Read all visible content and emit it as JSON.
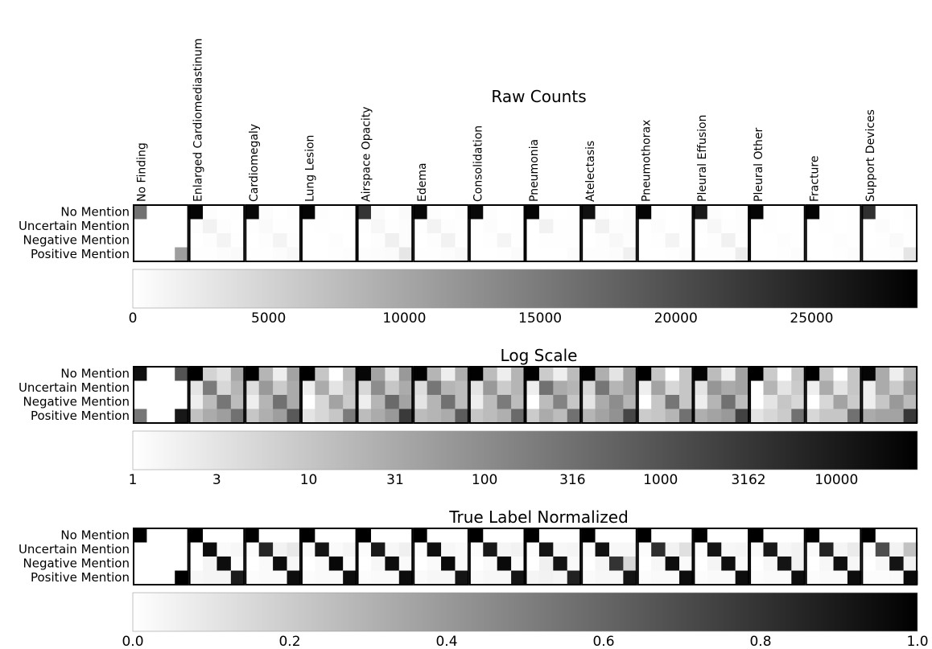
{
  "row_labels": [
    "No Mention",
    "Uncertain Mention",
    "Negative Mention",
    "Positive Mention"
  ],
  "categories": [
    "No Finding",
    "Enlarged Cardiomediastinum",
    "Cardiomegaly",
    "Lung Lesion",
    "Airspace Opacity",
    "Edema",
    "Consolidation",
    "Pneumonia",
    "Atelectasis",
    "Pneumothorax",
    "Pleural Effusion",
    "Pleural Other",
    "Fracture",
    "Support Devices"
  ],
  "chart_data": [
    {
      "type": "heatmap",
      "title": "Raw Counts",
      "colorbar": {
        "min": 0,
        "max": 28900,
        "scale": "linear",
        "tick_values": [
          0,
          5000,
          10000,
          15000,
          20000,
          25000
        ],
        "tick_labels": [
          "0",
          "5000",
          "10000",
          "15000",
          "20000",
          "25000"
        ]
      },
      "matrices": [
        [
          [
            16000,
            0,
            0,
            0
          ],
          [
            0,
            0,
            0,
            0
          ],
          [
            0,
            0,
            0,
            0
          ],
          [
            0,
            0,
            0,
            11000
          ]
        ],
        [
          [
            28500,
            200,
            0,
            100
          ],
          [
            200,
            1500,
            200,
            50
          ],
          [
            0,
            200,
            1200,
            100
          ],
          [
            100,
            100,
            300,
            600
          ]
        ],
        [
          [
            28000,
            300,
            0,
            200
          ],
          [
            100,
            600,
            100,
            100
          ],
          [
            0,
            200,
            1200,
            200
          ],
          [
            100,
            100,
            300,
            800
          ]
        ],
        [
          [
            28500,
            200,
            0,
            100
          ],
          [
            0,
            150,
            0,
            50
          ],
          [
            0,
            0,
            200,
            50
          ],
          [
            50,
            50,
            100,
            200
          ]
        ],
        [
          [
            23000,
            500,
            0,
            600
          ],
          [
            100,
            900,
            100,
            300
          ],
          [
            0,
            200,
            1700,
            300
          ],
          [
            200,
            300,
            500,
            2800
          ]
        ],
        [
          [
            28000,
            200,
            0,
            200
          ],
          [
            100,
            1400,
            200,
            100
          ],
          [
            0,
            200,
            1500,
            100
          ],
          [
            100,
            100,
            300,
            700
          ]
        ],
        [
          [
            28000,
            200,
            0,
            150
          ],
          [
            0,
            300,
            0,
            100
          ],
          [
            0,
            100,
            1100,
            100
          ],
          [
            50,
            50,
            100,
            400
          ]
        ],
        [
          [
            28500,
            100,
            0,
            100
          ],
          [
            0,
            1500,
            100,
            100
          ],
          [
            0,
            100,
            100,
            100
          ],
          [
            50,
            50,
            50,
            300
          ]
        ],
        [
          [
            27000,
            200,
            0,
            300
          ],
          [
            100,
            1500,
            200,
            300
          ],
          [
            0,
            200,
            800,
            200
          ],
          [
            200,
            200,
            300,
            1700
          ]
        ],
        [
          [
            28500,
            100,
            0,
            100
          ],
          [
            0,
            300,
            0,
            100
          ],
          [
            0,
            100,
            1200,
            100
          ],
          [
            0,
            0,
            100,
            300
          ]
        ],
        [
          [
            26000,
            200,
            0,
            200
          ],
          [
            100,
            900,
            100,
            200
          ],
          [
            0,
            200,
            1600,
            100
          ],
          [
            200,
            200,
            200,
            2000
          ]
        ],
        [
          [
            28500,
            100,
            0,
            100
          ],
          [
            0,
            100,
            0,
            100
          ],
          [
            0,
            0,
            200,
            100
          ],
          [
            0,
            0,
            100,
            300
          ]
        ],
        [
          [
            28500,
            100,
            0,
            100
          ],
          [
            0,
            100,
            0,
            100
          ],
          [
            0,
            0,
            200,
            100
          ],
          [
            0,
            0,
            100,
            300
          ]
        ],
        [
          [
            23500,
            100,
            0,
            200
          ],
          [
            0,
            300,
            0,
            100
          ],
          [
            0,
            100,
            600,
            100
          ],
          [
            100,
            100,
            200,
            3000
          ]
        ]
      ]
    },
    {
      "type": "heatmap",
      "title": "Log Scale",
      "colorbar": {
        "min": 1,
        "max": 28900,
        "scale": "log",
        "tick_values": [
          1,
          3,
          10,
          31,
          100,
          316,
          1000,
          3162,
          10000
        ],
        "tick_labels": [
          "1",
          "3",
          "10",
          "31",
          "100",
          "316",
          "1000",
          "3162",
          "10000"
        ]
      },
      "matrices": [
        [
          [
            16000,
            0,
            0,
            1000
          ],
          [
            0,
            0,
            0,
            0
          ],
          [
            0,
            0,
            0,
            0
          ],
          [
            250,
            0,
            0,
            11000
          ]
        ],
        [
          [
            28500,
            6,
            3,
            35
          ],
          [
            3,
            200,
            5,
            20
          ],
          [
            2,
            15,
            250,
            15
          ],
          [
            12,
            30,
            50,
            300
          ]
        ],
        [
          [
            28000,
            20,
            2,
            40
          ],
          [
            4,
            60,
            8,
            30
          ],
          [
            2,
            20,
            300,
            30
          ],
          [
            10,
            25,
            50,
            800
          ]
        ],
        [
          [
            28500,
            10,
            1,
            15
          ],
          [
            2,
            30,
            3,
            10
          ],
          [
            1,
            5,
            40,
            8
          ],
          [
            3,
            5,
            10,
            200
          ]
        ],
        [
          [
            23000,
            40,
            3,
            60
          ],
          [
            5,
            100,
            10,
            30
          ],
          [
            2,
            20,
            400,
            40
          ],
          [
            15,
            30,
            60,
            2800
          ]
        ],
        [
          [
            28000,
            20,
            2,
            25
          ],
          [
            4,
            250,
            20,
            15
          ],
          [
            3,
            20,
            300,
            15
          ],
          [
            15,
            20,
            30,
            700
          ]
        ],
        [
          [
            28000,
            15,
            2,
            20
          ],
          [
            3,
            60,
            8,
            20
          ],
          [
            2,
            15,
            200,
            15
          ],
          [
            10,
            15,
            25,
            400
          ]
        ],
        [
          [
            28500,
            8,
            2,
            15
          ],
          [
            2,
            300,
            30,
            20
          ],
          [
            1,
            15,
            150,
            10
          ],
          [
            8,
            30,
            15,
            300
          ]
        ],
        [
          [
            27000,
            25,
            3,
            40
          ],
          [
            5,
            250,
            20,
            40
          ],
          [
            3,
            30,
            100,
            20
          ],
          [
            20,
            40,
            80,
            1700
          ]
        ],
        [
          [
            28500,
            10,
            1,
            10
          ],
          [
            2,
            40,
            5,
            10
          ],
          [
            1,
            10,
            250,
            10
          ],
          [
            8,
            10,
            20,
            300
          ]
        ],
        [
          [
            26000,
            15,
            2,
            40
          ],
          [
            3,
            70,
            30,
            40
          ],
          [
            2,
            20,
            300,
            15
          ],
          [
            25,
            40,
            60,
            2000
          ]
        ],
        [
          [
            28500,
            8,
            1,
            10
          ],
          [
            1,
            20,
            3,
            8
          ],
          [
            1,
            3,
            10,
            5
          ],
          [
            3,
            5,
            8,
            300
          ]
        ],
        [
          [
            28500,
            10,
            1,
            10
          ],
          [
            2,
            30,
            3,
            10
          ],
          [
            1,
            5,
            40,
            8
          ],
          [
            5,
            10,
            10,
            300
          ]
        ],
        [
          [
            23500,
            30,
            2,
            20
          ],
          [
            2,
            30,
            8,
            50
          ],
          [
            2,
            10,
            60,
            15
          ],
          [
            30,
            40,
            40,
            3000
          ]
        ]
      ]
    },
    {
      "type": "heatmap",
      "title": "True Label Normalized",
      "colorbar": {
        "min": 0,
        "max": 1,
        "scale": "linear",
        "tick_values": [
          0,
          0.2,
          0.4,
          0.6,
          0.8,
          1.0
        ],
        "tick_labels": [
          "0.0",
          "0.2",
          "0.4",
          "0.6",
          "0.8",
          "1.0"
        ]
      },
      "matrices": [
        [
          [
            1,
            0,
            0,
            0
          ],
          [
            0,
            0,
            0,
            0
          ],
          [
            0,
            0,
            0,
            0
          ],
          [
            0,
            0,
            0,
            1
          ]
        ],
        [
          [
            1,
            0,
            0,
            0
          ],
          [
            0,
            0.95,
            0.02,
            0.03
          ],
          [
            0,
            0.04,
            0.95,
            0.01
          ],
          [
            0.03,
            0.04,
            0.04,
            0.89
          ]
        ],
        [
          [
            1,
            0,
            0,
            0
          ],
          [
            0.01,
            0.85,
            0.05,
            0.09
          ],
          [
            0,
            0.02,
            0.95,
            0.03
          ],
          [
            0.01,
            0.02,
            0.02,
            0.95
          ]
        ],
        [
          [
            1,
            0,
            0,
            0
          ],
          [
            0.02,
            0.92,
            0.02,
            0.04
          ],
          [
            0,
            0.02,
            0.97,
            0.01
          ],
          [
            0.01,
            0.02,
            0.02,
            0.95
          ]
        ],
        [
          [
            1,
            0,
            0,
            0
          ],
          [
            0.01,
            0.9,
            0.03,
            0.06
          ],
          [
            0,
            0.03,
            0.95,
            0.02
          ],
          [
            0.01,
            0.02,
            0.02,
            0.95
          ]
        ],
        [
          [
            1,
            0,
            0,
            0
          ],
          [
            0.01,
            0.94,
            0.03,
            0.02
          ],
          [
            0,
            0.02,
            0.96,
            0.02
          ],
          [
            0.02,
            0.03,
            0.03,
            0.92
          ]
        ],
        [
          [
            1,
            0,
            0,
            0
          ],
          [
            0.01,
            0.9,
            0.04,
            0.05
          ],
          [
            0,
            0.02,
            0.96,
            0.02
          ],
          [
            0.02,
            0.03,
            0.03,
            0.92
          ]
        ],
        [
          [
            1,
            0,
            0,
            0
          ],
          [
            0.01,
            0.92,
            0.03,
            0.04
          ],
          [
            0,
            0.06,
            0.92,
            0.02
          ],
          [
            0.04,
            0.05,
            0.04,
            0.87
          ]
        ],
        [
          [
            1,
            0,
            0,
            0
          ],
          [
            0.01,
            0.93,
            0.03,
            0.03
          ],
          [
            0,
            0.04,
            0.8,
            0.16
          ],
          [
            0.02,
            0.03,
            0.03,
            0.92
          ]
        ],
        [
          [
            1,
            0,
            0,
            0
          ],
          [
            0.01,
            0.82,
            0.05,
            0.12
          ],
          [
            0,
            0.03,
            0.95,
            0.02
          ],
          [
            0.01,
            0.02,
            0.02,
            0.95
          ]
        ],
        [
          [
            1,
            0,
            0,
            0
          ],
          [
            0.01,
            0.92,
            0.03,
            0.04
          ],
          [
            0,
            0.04,
            0.94,
            0.02
          ],
          [
            0.01,
            0.02,
            0.02,
            0.95
          ]
        ],
        [
          [
            1,
            0,
            0,
            0
          ],
          [
            0.02,
            0.9,
            0.03,
            0.05
          ],
          [
            0,
            0.03,
            0.92,
            0.05
          ],
          [
            0.01,
            0.02,
            0.02,
            0.95
          ]
        ],
        [
          [
            1,
            0,
            0,
            0
          ],
          [
            0.02,
            0.86,
            0.04,
            0.08
          ],
          [
            0,
            0.03,
            0.94,
            0.03
          ],
          [
            0.01,
            0.02,
            0.02,
            0.95
          ]
        ],
        [
          [
            1,
            0,
            0,
            0
          ],
          [
            0.01,
            0.7,
            0.05,
            0.24
          ],
          [
            0,
            0.03,
            0.92,
            0.05
          ],
          [
            0.01,
            0.01,
            0.02,
            0.96
          ]
        ]
      ]
    }
  ]
}
